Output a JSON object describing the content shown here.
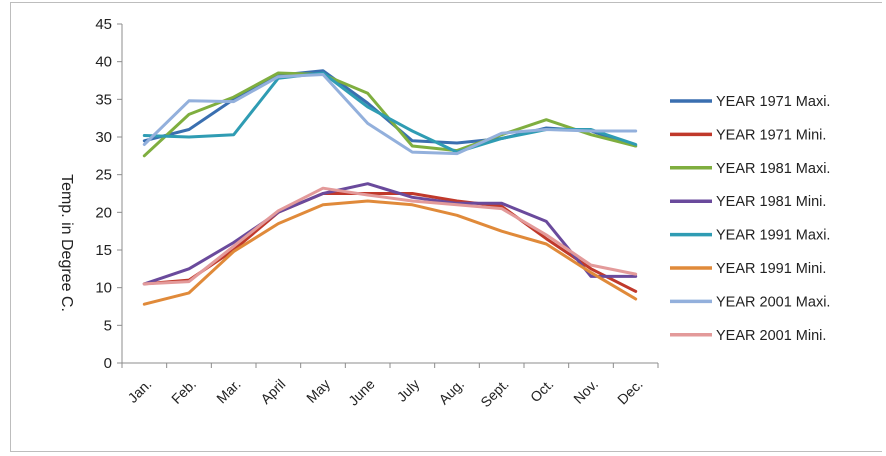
{
  "chart_data": {
    "type": "line",
    "title": "",
    "xlabel": "",
    "ylabel": "Temp. in Degree C.",
    "ylim": [
      0,
      45
    ],
    "yticks": [
      "0",
      "5",
      "10",
      "15",
      "20",
      "25",
      "30",
      "35",
      "40",
      "45"
    ],
    "grid": false,
    "legend_position": "right",
    "categories": [
      "Jan.",
      "Feb.",
      "Mar.",
      "April",
      "May",
      "June",
      "July",
      "Aug.",
      "Sept.",
      "Oct.",
      "Nov.",
      "Dec."
    ],
    "series": [
      {
        "name": "YEAR 1971 Maxi.",
        "color": "#3a6fb0",
        "values": [
          29.5,
          31.0,
          35.0,
          38.2,
          38.8,
          34.5,
          29.5,
          29.2,
          29.8,
          31.2,
          30.8,
          28.8
        ]
      },
      {
        "name": "YEAR 1971 Mini.",
        "color": "#c0392b",
        "values": [
          10.5,
          11.0,
          15.0,
          20.0,
          22.5,
          22.5,
          22.5,
          21.5,
          20.8,
          16.5,
          12.5,
          9.5
        ]
      },
      {
        "name": "YEAR 1981 Maxi.",
        "color": "#7fae3f",
        "values": [
          27.5,
          33.0,
          35.3,
          38.5,
          38.3,
          35.8,
          28.8,
          28.2,
          30.3,
          32.3,
          30.3,
          28.8
        ]
      },
      {
        "name": "YEAR 1981 Mini.",
        "color": "#6a4a9c",
        "values": [
          10.5,
          12.5,
          16.0,
          20.0,
          22.5,
          23.8,
          22.0,
          21.2,
          21.2,
          18.8,
          11.5,
          11.5
        ]
      },
      {
        "name": "YEAR 1991 Maxi.",
        "color": "#2f9cb3",
        "values": [
          30.2,
          30.0,
          30.3,
          37.8,
          38.5,
          34.0,
          30.8,
          28.0,
          29.8,
          31.0,
          31.0,
          29.0
        ]
      },
      {
        "name": "YEAR 1991 Mini.",
        "color": "#e08a3a",
        "values": [
          7.8,
          9.3,
          14.8,
          18.5,
          21.0,
          21.5,
          21.0,
          19.6,
          17.5,
          15.8,
          12.0,
          8.5
        ]
      },
      {
        "name": "YEAR 2001 Maxi.",
        "color": "#93b0dc",
        "values": [
          29.0,
          34.8,
          34.7,
          38.0,
          38.3,
          31.8,
          28.0,
          27.8,
          30.5,
          31.0,
          30.8,
          30.8
        ]
      },
      {
        "name": "YEAR 2001 Mini.",
        "color": "#e39a9a",
        "values": [
          10.5,
          10.8,
          15.5,
          20.2,
          23.2,
          22.3,
          21.5,
          21.0,
          20.5,
          17.0,
          13.0,
          11.8
        ]
      }
    ]
  }
}
